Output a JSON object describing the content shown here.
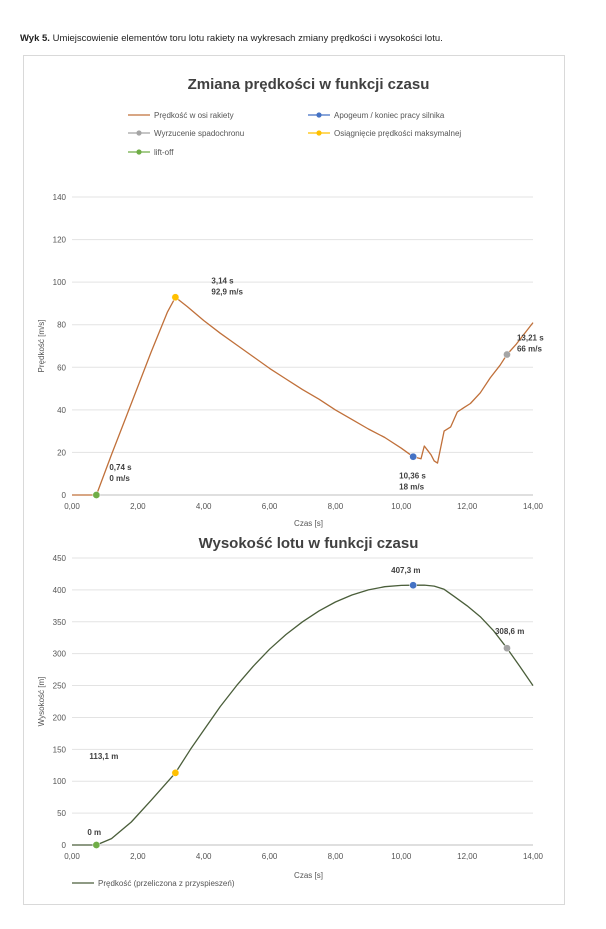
{
  "caption": {
    "bold": "Wyk 5.",
    "text": " Umiejscowienie elementów toru lotu rakiety na wykresach zmiany prędkości i wysokości lotu."
  },
  "colors": {
    "velocity_line": "#c0703a",
    "altitude_line": "#4a5e3a",
    "apogee": "#4472c4",
    "parachute": "#a5a5a5",
    "max_speed": "#ffc000",
    "liftoff": "#70ad47",
    "grid": "#e3e3e3",
    "axis": "#bfbfbf"
  },
  "chart_data": [
    {
      "type": "line",
      "title": "Zmiana prędkości w funkcji czasu",
      "xlabel": "Czas [s]",
      "ylabel": "Prędkość [m/s]",
      "xlim": [
        0,
        14
      ],
      "ylim": [
        0,
        140
      ],
      "xticks": [
        "0,00",
        "2,00",
        "4,00",
        "6,00",
        "8,00",
        "10,00",
        "12,00",
        "14,00"
      ],
      "yticks": [
        "0",
        "20",
        "40",
        "60",
        "80",
        "100",
        "120",
        "140"
      ],
      "grid": true,
      "legend_position": "top",
      "series": [
        {
          "name": "Prędkość w osi rakiety",
          "marker": "line",
          "x": [
            0,
            0.74,
            1.2,
            1.8,
            2.4,
            2.9,
            3.14,
            3.5,
            4.0,
            4.5,
            5.0,
            5.5,
            6.0,
            6.5,
            7.0,
            7.5,
            8.0,
            8.5,
            9.0,
            9.5,
            10.0,
            10.36,
            10.6,
            10.7,
            10.8,
            10.9,
            11.0,
            11.1,
            11.3,
            11.5,
            11.7,
            11.9,
            12.1,
            12.4,
            12.7,
            13.0,
            13.21,
            13.5,
            13.8,
            14.0
          ],
          "y": [
            0,
            0,
            19,
            43,
            67,
            86,
            92.9,
            88.5,
            82,
            76,
            70.5,
            65,
            59.5,
            54.5,
            49.5,
            45,
            40,
            35.5,
            31,
            27,
            22,
            18,
            17,
            23,
            21,
            19,
            16,
            15,
            30,
            32,
            39,
            41,
            43,
            48,
            55,
            61,
            66,
            71,
            77,
            81
          ]
        },
        {
          "name": "Apogeum / koniec pracy silnika",
          "marker": "point",
          "x": [
            10.36
          ],
          "y": [
            18
          ],
          "label": [
            "10,36 s",
            "18 m/s"
          ]
        },
        {
          "name": "Wyrzucenie spadochronu",
          "marker": "point",
          "x": [
            13.21
          ],
          "y": [
            66
          ],
          "label": [
            "13,21 s",
            "66 m/s"
          ]
        },
        {
          "name": "Osiągnięcie prędkości maksymalnej",
          "marker": "point",
          "x": [
            3.14
          ],
          "y": [
            92.9
          ],
          "label": [
            "3,14 s",
            "92,9 m/s"
          ]
        },
        {
          "name": "lift-off",
          "marker": "point",
          "x": [
            0.74
          ],
          "y": [
            0
          ],
          "label": [
            "0,74 s",
            "0 m/s"
          ]
        }
      ]
    },
    {
      "type": "line",
      "title": "Wysokość lotu w funkcji czasu",
      "xlabel": "Czas [s]",
      "ylabel": "Wysokość [m]",
      "xlim": [
        0,
        14
      ],
      "ylim": [
        0,
        450
      ],
      "xticks": [
        "0,00",
        "2,00",
        "4,00",
        "6,00",
        "8,00",
        "10,00",
        "12,00",
        "14,00"
      ],
      "yticks": [
        "0",
        "50",
        "100",
        "150",
        "200",
        "250",
        "300",
        "350",
        "400",
        "450"
      ],
      "grid": true,
      "legend_position": "bottom-left",
      "series": [
        {
          "name": "Prędkość (przeliczona z przyspieszeń)",
          "marker": "line",
          "x": [
            0,
            0.74,
            1.2,
            1.8,
            2.4,
            3.14,
            3.6,
            4.0,
            4.5,
            5.0,
            5.5,
            6.0,
            6.5,
            7.0,
            7.5,
            8.0,
            8.5,
            9.0,
            9.5,
            10.0,
            10.36,
            10.7,
            11.0,
            11.3,
            11.6,
            12.0,
            12.4,
            12.8,
            13.21,
            13.6,
            14.0
          ],
          "y": [
            0,
            0,
            10,
            36,
            70,
            113.1,
            150,
            180,
            217,
            250,
            280,
            307,
            330,
            350,
            367,
            381,
            392,
            400,
            405,
            407,
            407.3,
            407.5,
            406,
            401,
            390,
            375,
            358,
            336,
            308.6,
            280,
            250
          ]
        },
        {
          "name": "",
          "marker": "point",
          "color_key": "apogee",
          "x": [
            10.36
          ],
          "y": [
            407.3
          ],
          "label": [
            "407,3 m"
          ]
        },
        {
          "name": "",
          "marker": "point",
          "color_key": "parachute",
          "x": [
            13.21
          ],
          "y": [
            308.6
          ],
          "label": [
            "308,6 m"
          ]
        },
        {
          "name": "",
          "marker": "point",
          "color_key": "max_speed",
          "x": [
            3.14
          ],
          "y": [
            113.1
          ],
          "label": [
            "113,1 m"
          ]
        },
        {
          "name": "",
          "marker": "point",
          "color_key": "liftoff",
          "x": [
            0.74
          ],
          "y": [
            0
          ],
          "label": [
            "0 m"
          ]
        }
      ]
    }
  ]
}
